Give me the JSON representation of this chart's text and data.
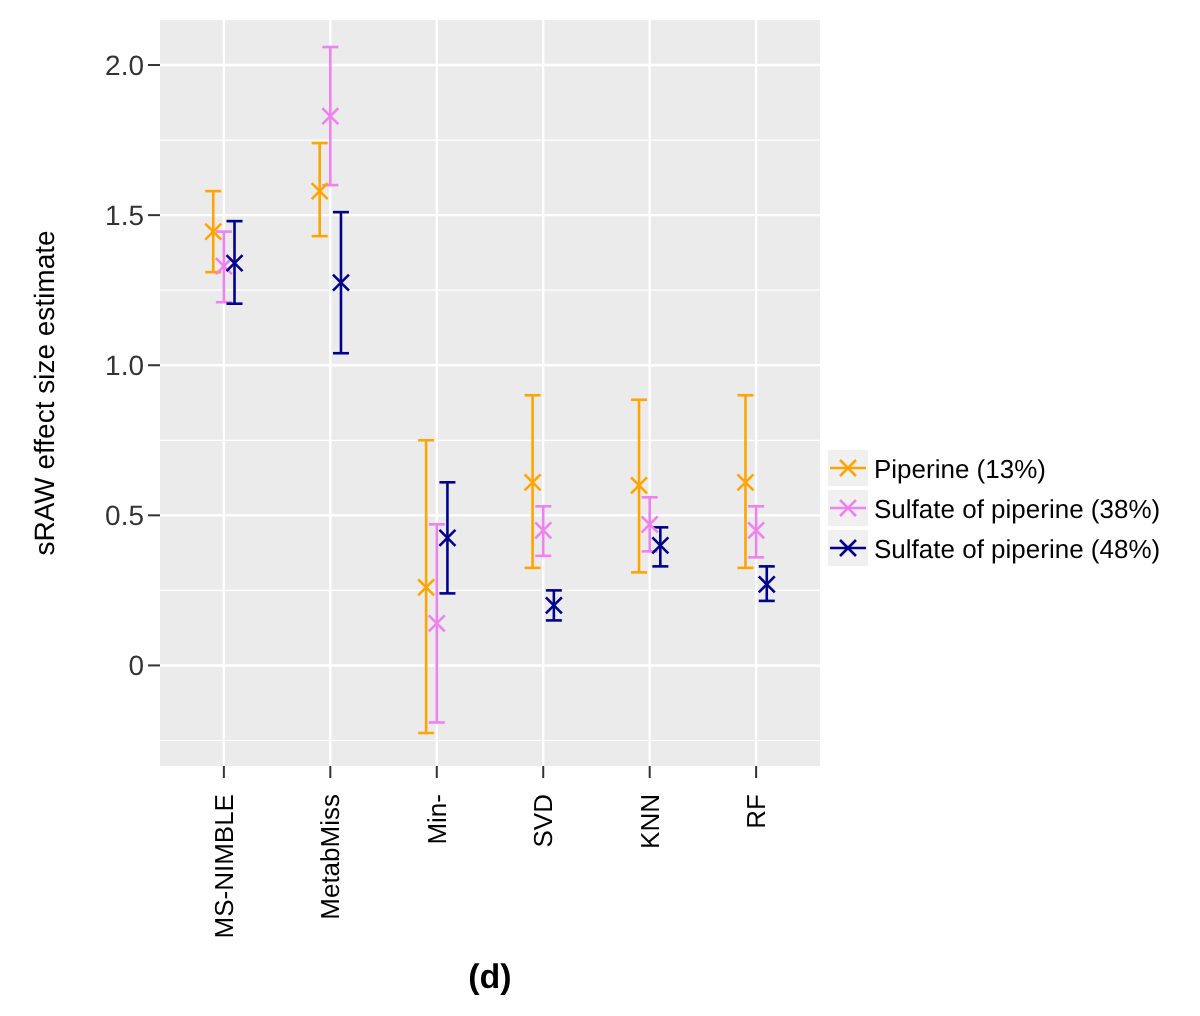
{
  "chart_data": {
    "type": "scatter",
    "xlabel": "(d)",
    "ylabel": "sRAW effect size estimate",
    "categories": [
      "MS-NIMBLE",
      "MetabMiss",
      "Min-",
      "SVD",
      "KNN",
      "RF"
    ],
    "series": [
      {
        "name": "Piperine (13%)",
        "color": "#ffa500",
        "values": [
          1.445,
          1.58,
          0.26,
          0.61,
          0.6,
          0.61
        ],
        "errors": [
          [
            1.31,
            1.58
          ],
          [
            1.43,
            1.74
          ],
          [
            -0.225,
            0.75
          ],
          [
            0.325,
            0.9
          ],
          [
            0.31,
            0.885
          ],
          [
            0.325,
            0.9
          ]
        ]
      },
      {
        "name": "Sulfate of piperine (38%)",
        "color": "#ee82ee",
        "values": [
          1.33,
          1.83,
          0.14,
          0.45,
          0.47,
          0.45
        ],
        "errors": [
          [
            1.21,
            1.445
          ],
          [
            1.6,
            2.06
          ],
          [
            -0.19,
            0.47
          ],
          [
            0.365,
            0.53
          ],
          [
            0.38,
            0.56
          ],
          [
            0.36,
            0.53
          ]
        ]
      },
      {
        "name": "Sulfate of piperine (48%)",
        "color": "#00008b",
        "values": [
          1.34,
          1.275,
          0.425,
          0.2,
          0.4,
          0.27
        ],
        "errors": [
          [
            1.205,
            1.48
          ],
          [
            1.04,
            1.51
          ],
          [
            0.24,
            0.61
          ],
          [
            0.15,
            0.25
          ],
          [
            0.33,
            0.46
          ],
          [
            0.215,
            0.33
          ]
        ]
      }
    ],
    "ylim": [
      -0.335,
      2.15
    ],
    "yticks": [
      0,
      {
        "value": 0.5,
        "label": "0.5"
      },
      {
        "value": 1,
        "label": "1.0"
      },
      {
        "value": 1.5,
        "label": "1.5"
      },
      {
        "value": 2,
        "label": "2.0"
      }
    ],
    "grid": true,
    "legend": "right",
    "marker": "cross"
  }
}
